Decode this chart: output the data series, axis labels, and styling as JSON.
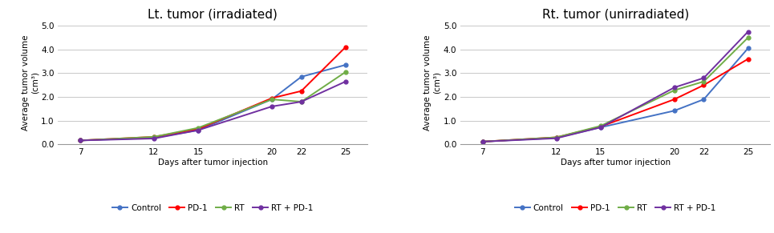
{
  "days": [
    7,
    12,
    15,
    20,
    22,
    25
  ],
  "left": {
    "title": "Lt. tumor (irradiated)",
    "Control": [
      0.17,
      0.28,
      0.6,
      1.9,
      2.85,
      3.35
    ],
    "PD-1": [
      0.17,
      0.32,
      0.65,
      1.95,
      2.25,
      4.1
    ],
    "RT": [
      0.17,
      0.32,
      0.7,
      1.9,
      1.8,
      3.05
    ],
    "RT + PD-1": [
      0.17,
      0.25,
      0.6,
      1.6,
      1.8,
      2.65
    ]
  },
  "right": {
    "title": "Rt. tumor (unirradiated)",
    "Control": [
      0.12,
      0.28,
      0.72,
      1.42,
      1.9,
      4.05
    ],
    "PD-1": [
      0.12,
      0.3,
      0.75,
      1.9,
      2.5,
      3.6
    ],
    "RT": [
      0.12,
      0.3,
      0.78,
      2.28,
      2.65,
      4.5
    ],
    "RT + PD-1": [
      0.12,
      0.26,
      0.72,
      2.4,
      2.8,
      4.75
    ]
  },
  "colors": {
    "Control": "#4472C4",
    "PD-1": "#FF0000",
    "RT": "#70AD47",
    "RT + PD-1": "#7030A0"
  },
  "ylabel": "Average tumor volume\n(cm³)",
  "xlabel": "Days after tumor injection",
  "ylim": [
    0.0,
    5.2
  ],
  "yticks": [
    0.0,
    1.0,
    2.0,
    3.0,
    4.0,
    5.0
  ],
  "ytick_labels": [
    "0.0",
    "1.0",
    "2.0",
    "3.0",
    "4.0",
    "5.0"
  ],
  "marker": "o",
  "markersize": 3.5,
  "linewidth": 1.4,
  "title_fontsize": 11,
  "label_fontsize": 7.5,
  "tick_fontsize": 7.5,
  "legend_fontsize": 7.5,
  "bg_color": "#FFFFFF",
  "grid_color": "#C8C8C8"
}
